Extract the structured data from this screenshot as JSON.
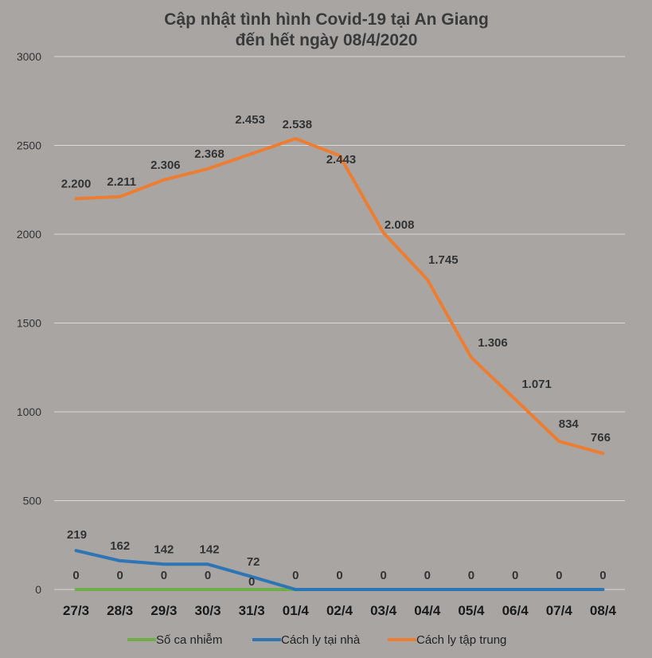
{
  "chart_data": {
    "type": "line",
    "title": "Cập nhật tình hình Covid-19  tại An Giang",
    "subtitle": "đến hết ngày 08/4/2020",
    "categories": [
      "27/3",
      "28/3",
      "29/3",
      "30/3",
      "31/3",
      "01/4",
      "02/4",
      "03/4",
      "04/4",
      "05/4",
      "06/4",
      "07/4",
      "08/4"
    ],
    "yticks": [
      "0",
      "500",
      "1000",
      "1500",
      "2000",
      "2500",
      "3000"
    ],
    "ylim": [
      0,
      3000
    ],
    "grid": true,
    "legend_position": "bottom",
    "series": [
      {
        "name": "Số ca nhiễm",
        "color": "#70ad47",
        "values": [
          0,
          0,
          0,
          0,
          0,
          0,
          0,
          0,
          0,
          0,
          0,
          0,
          0
        ],
        "labels": [
          "0",
          "0",
          "0",
          "0",
          "0",
          "0",
          "0",
          "0",
          "0",
          "0",
          "0",
          "0",
          "0"
        ]
      },
      {
        "name": "Cách ly tại nhà",
        "color": "#2e75b6",
        "values": [
          219,
          162,
          142,
          142,
          72,
          0,
          0,
          0,
          0,
          0,
          0,
          0,
          0
        ],
        "labels": [
          "219",
          "162",
          "142",
          "142",
          "72",
          "",
          "",
          "",
          "",
          "",
          "",
          "",
          ""
        ]
      },
      {
        "name": "Cách ly tập trung",
        "color": "#ed7d31",
        "values": [
          2200,
          2211,
          2306,
          2368,
          2453,
          2538,
          2443,
          2008,
          1745,
          1306,
          1071,
          834,
          766
        ],
        "labels": [
          "2.200",
          "2.211",
          "2.306",
          "2.368",
          "2.453",
          "2.538",
          "2.443",
          "2.008",
          "1.745",
          "1.306",
          "1.071",
          "834",
          "766"
        ]
      }
    ]
  }
}
